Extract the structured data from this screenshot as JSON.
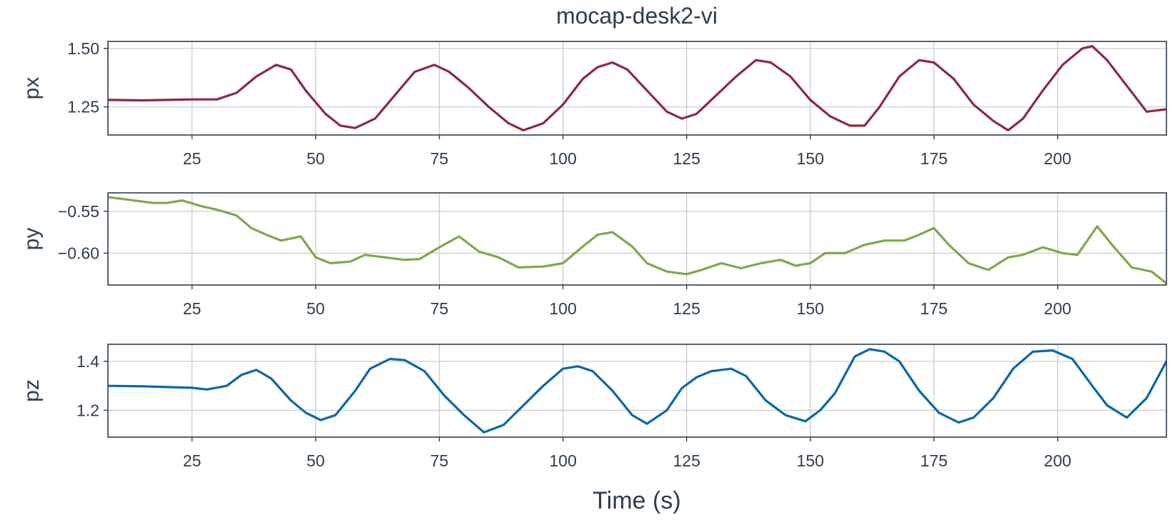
{
  "chart_data": {
    "type": "line",
    "title": "mocap-desk2-vi",
    "xlabel": "Time (s)",
    "xlim": [
      8,
      222
    ],
    "xticks": [
      25,
      50,
      75,
      100,
      125,
      150,
      175,
      200
    ],
    "grid": true,
    "panels": [
      {
        "name": "px",
        "ylabel": "px",
        "color": "#8e2a3e",
        "ylim": [
          1.13,
          1.53
        ],
        "yticks": [
          1.25,
          1.5
        ],
        "ytick_labels": [
          "1.25",
          "1.50"
        ],
        "x": [
          8,
          15,
          20,
          25,
          30,
          34,
          38,
          42,
          45,
          48,
          52,
          55,
          58,
          62,
          66,
          70,
          74,
          77,
          81,
          85,
          89,
          92,
          96,
          100,
          104,
          107,
          110,
          113,
          117,
          121,
          124,
          127,
          131,
          135,
          139,
          142,
          146,
          150,
          154,
          158,
          161,
          164,
          168,
          172,
          175,
          179,
          183,
          187,
          190,
          193,
          197,
          201,
          205,
          207,
          210,
          214,
          218,
          222
        ],
        "y": [
          1.28,
          1.278,
          1.28,
          1.282,
          1.282,
          1.31,
          1.38,
          1.43,
          1.41,
          1.32,
          1.22,
          1.17,
          1.16,
          1.2,
          1.3,
          1.4,
          1.43,
          1.4,
          1.33,
          1.25,
          1.18,
          1.15,
          1.18,
          1.26,
          1.37,
          1.42,
          1.44,
          1.41,
          1.32,
          1.23,
          1.2,
          1.22,
          1.3,
          1.38,
          1.45,
          1.44,
          1.38,
          1.28,
          1.21,
          1.17,
          1.17,
          1.25,
          1.38,
          1.45,
          1.44,
          1.37,
          1.26,
          1.19,
          1.15,
          1.2,
          1.32,
          1.43,
          1.5,
          1.51,
          1.45,
          1.34,
          1.23,
          1.24
        ]
      },
      {
        "name": "py",
        "ylabel": "py",
        "color": "#7fa84a",
        "ylim": [
          -0.638,
          -0.528
        ],
        "yticks": [
          -0.55,
          -0.6
        ],
        "ytick_labels": [
          "−0.55",
          "−0.60"
        ],
        "x": [
          8,
          12,
          17,
          20,
          23,
          27,
          30,
          34,
          37,
          40,
          43,
          47,
          50,
          53,
          57,
          60,
          64,
          68,
          71,
          75,
          79,
          83,
          87,
          91,
          96,
          100,
          104,
          107,
          110,
          114,
          117,
          121,
          125,
          128,
          132,
          136,
          140,
          144,
          147,
          150,
          153,
          157,
          161,
          165,
          169,
          172,
          175,
          178,
          182,
          186,
          190,
          193,
          197,
          201,
          204,
          208,
          211,
          215,
          219,
          222
        ],
        "y": [
          -0.533,
          -0.536,
          -0.54,
          -0.54,
          -0.537,
          -0.544,
          -0.548,
          -0.555,
          -0.57,
          -0.578,
          -0.585,
          -0.58,
          -0.605,
          -0.612,
          -0.61,
          -0.602,
          -0.605,
          -0.608,
          -0.607,
          -0.593,
          -0.58,
          -0.598,
          -0.605,
          -0.617,
          -0.616,
          -0.612,
          -0.592,
          -0.578,
          -0.575,
          -0.592,
          -0.612,
          -0.622,
          -0.625,
          -0.62,
          -0.612,
          -0.618,
          -0.612,
          -0.608,
          -0.615,
          -0.612,
          -0.6,
          -0.6,
          -0.59,
          -0.585,
          -0.585,
          -0.578,
          -0.57,
          -0.59,
          -0.612,
          -0.62,
          -0.605,
          -0.602,
          -0.593,
          -0.6,
          -0.602,
          -0.568,
          -0.59,
          -0.617,
          -0.622,
          -0.636
        ]
      },
      {
        "name": "pz",
        "ylabel": "pz",
        "color": "#0b67a8",
        "ylim": [
          1.09,
          1.47
        ],
        "yticks": [
          1.2,
          1.4
        ],
        "ytick_labels": [
          "1.2",
          "1.4"
        ],
        "x": [
          8,
          15,
          20,
          25,
          28,
          32,
          35,
          38,
          41,
          45,
          48,
          51,
          54,
          58,
          61,
          65,
          68,
          72,
          76,
          80,
          84,
          88,
          92,
          96,
          100,
          103,
          106,
          110,
          114,
          117,
          121,
          124,
          127,
          130,
          134,
          137,
          141,
          145,
          149,
          152,
          155,
          159,
          162,
          165,
          168,
          172,
          176,
          180,
          183,
          187,
          191,
          195,
          199,
          203,
          207,
          210,
          214,
          218,
          222
        ],
        "y": [
          1.3,
          1.298,
          1.295,
          1.292,
          1.285,
          1.3,
          1.345,
          1.365,
          1.33,
          1.24,
          1.19,
          1.16,
          1.18,
          1.28,
          1.37,
          1.41,
          1.405,
          1.36,
          1.26,
          1.18,
          1.11,
          1.14,
          1.22,
          1.3,
          1.37,
          1.38,
          1.36,
          1.28,
          1.18,
          1.145,
          1.2,
          1.29,
          1.335,
          1.36,
          1.37,
          1.34,
          1.24,
          1.18,
          1.155,
          1.2,
          1.27,
          1.42,
          1.45,
          1.44,
          1.4,
          1.28,
          1.19,
          1.15,
          1.17,
          1.25,
          1.37,
          1.44,
          1.445,
          1.41,
          1.3,
          1.22,
          1.17,
          1.25,
          1.4
        ]
      }
    ]
  }
}
